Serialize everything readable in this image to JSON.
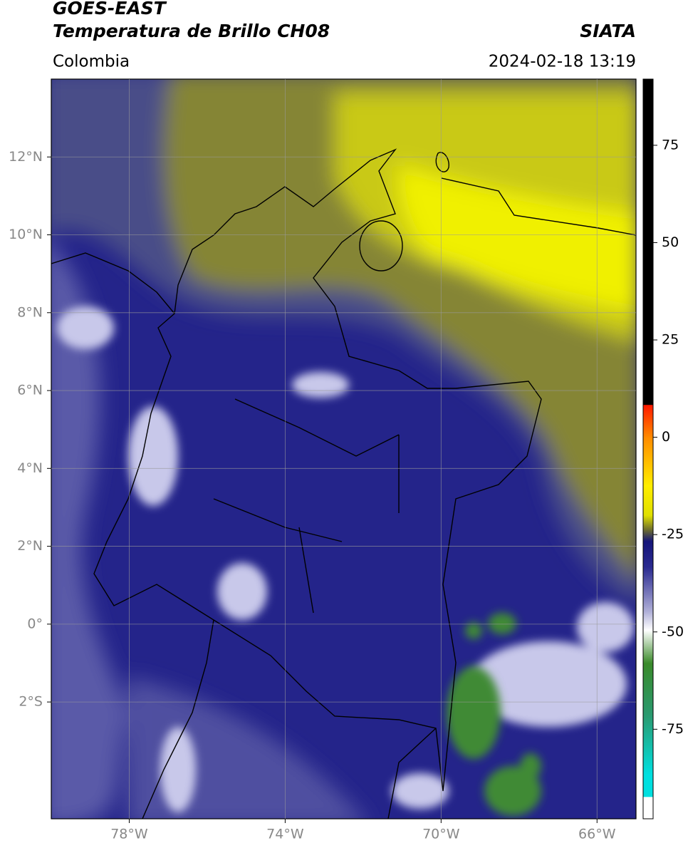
{
  "header": {
    "satellite": "GOES-EAST",
    "product": "Temperatura de Brillo CH08",
    "source": "SIATA",
    "region": "Colombia",
    "datetime": "2024-02-18 13:19"
  },
  "map": {
    "xlim": [
      -80,
      -65
    ],
    "ylim": [
      -5,
      14
    ],
    "xticks": [
      {
        "value": -78,
        "label": "78°W"
      },
      {
        "value": -74,
        "label": "74°W"
      },
      {
        "value": -70,
        "label": "70°W"
      },
      {
        "value": -66,
        "label": "66°W"
      }
    ],
    "yticks": [
      {
        "value": 12,
        "label": "12°N"
      },
      {
        "value": 10,
        "label": "10°N"
      },
      {
        "value": 8,
        "label": "8°N"
      },
      {
        "value": 6,
        "label": "6°N"
      },
      {
        "value": 4,
        "label": "4°N"
      },
      {
        "value": 2,
        "label": "2°N"
      },
      {
        "value": 0,
        "label": "0°"
      },
      {
        "value": -2,
        "label": "2°S"
      }
    ],
    "grid": true
  },
  "colorbar": {
    "lim": [
      -98,
      92
    ],
    "ticks": [
      75,
      50,
      25,
      0,
      -25,
      -50,
      -75
    ]
  }
}
